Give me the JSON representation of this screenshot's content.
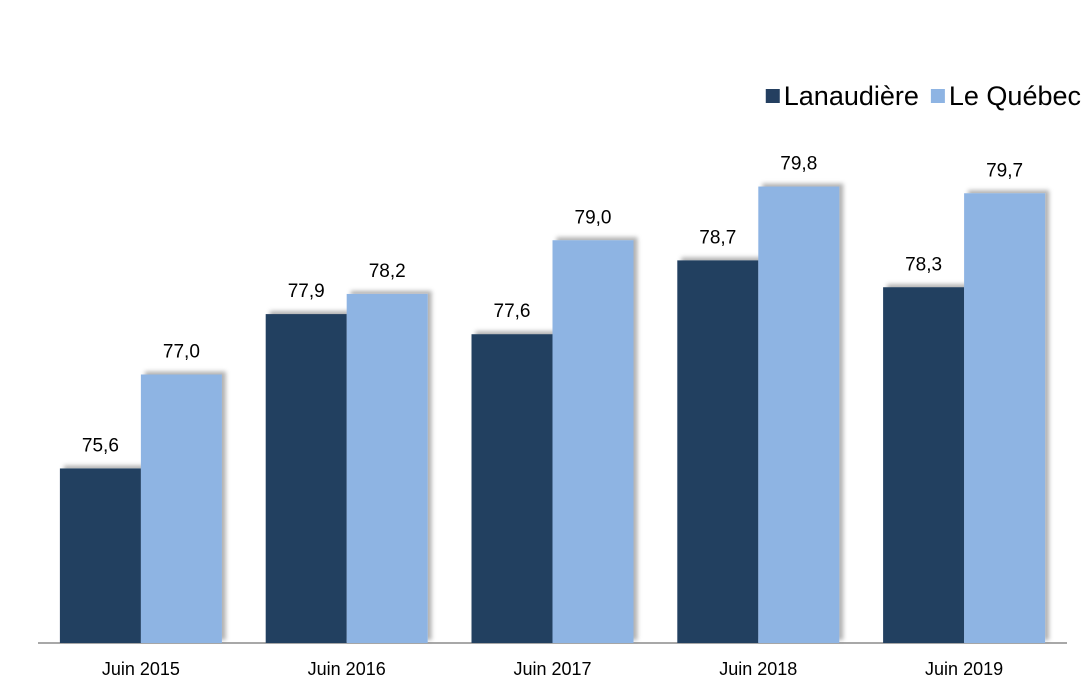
{
  "chart_data": {
    "type": "bar",
    "categories": [
      "Juin 2015",
      "Juin 2016",
      "Juin 2017",
      "Juin 2018",
      "Juin 2019"
    ],
    "series": [
      {
        "name": "Lanaudière",
        "color": "#243f60",
        "values": [
          75.6,
          77.9,
          77.6,
          78.7,
          78.3
        ],
        "value_labels": [
          "75,6",
          "77,9",
          "77,6",
          "78,7",
          "78,3"
        ]
      },
      {
        "name": "Le Québec",
        "color": "#8eb4e3",
        "values": [
          77.0,
          78.2,
          79.0,
          79.8,
          79.7
        ],
        "value_labels": [
          "77,0",
          "78,2",
          "79,0",
          "79,8",
          "79,7"
        ]
      }
    ],
    "ylim": [
      73,
      81
    ],
    "legend": "top-right"
  }
}
